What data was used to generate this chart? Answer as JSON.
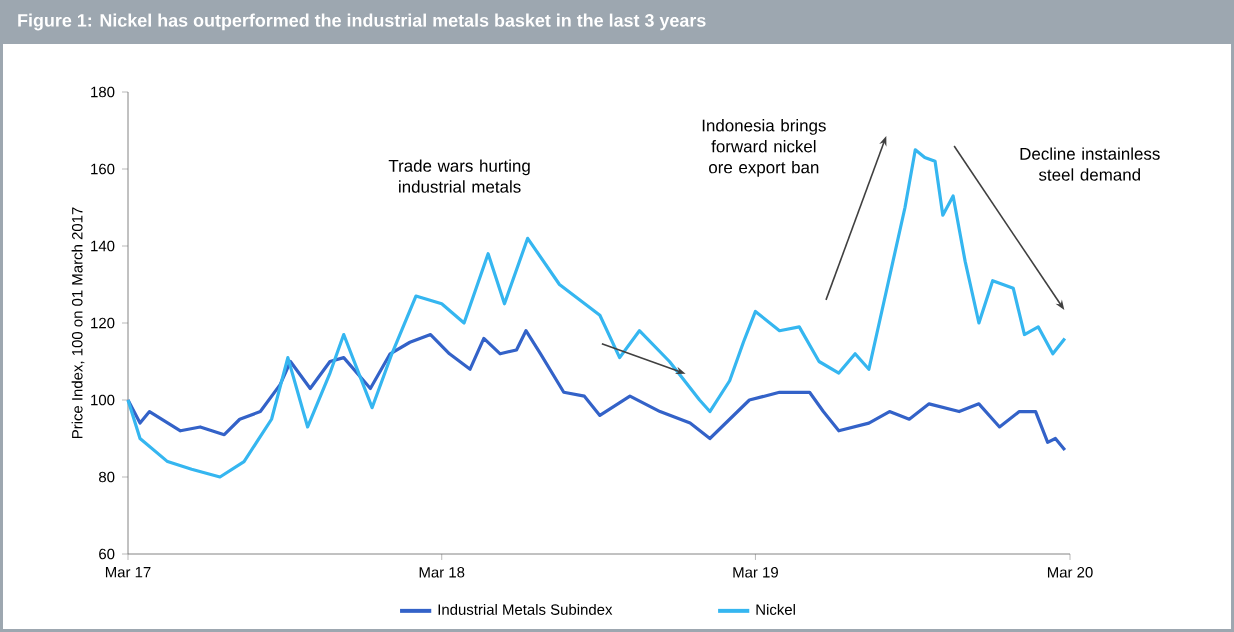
{
  "chart_data": {
    "type": "line",
    "title": "Figure 1: Nickel has outperformed the industrial metals basket in the last 3 years",
    "ylabel": "Price Index, 100 on 01 March 2017",
    "xlim": [
      "2017-03-01",
      "2020-03-01"
    ],
    "xticks": [
      {
        "value": "2017-03-01",
        "label": "Mar 17"
      },
      {
        "value": "2018-03-01",
        "label": "Mar 18"
      },
      {
        "value": "2019-03-01",
        "label": "Mar 19"
      },
      {
        "value": "2020-03-01",
        "label": "Mar 20"
      }
    ],
    "ylim": [
      60,
      180
    ],
    "yticks": [
      60,
      80,
      100,
      120,
      140,
      160,
      180
    ],
    "grid": false,
    "legend": "bottom",
    "marker": "none",
    "line_style": "solid",
    "annotations": [
      "Trade wars hurting industrial metals",
      "Indonesia brings forward nickel ore export ban",
      "Decline instainless steel demand"
    ],
    "series": [
      {
        "name": "Industrial Metals Subindex",
        "color": "#3362c8",
        "x": [
          "2017-03-01",
          "2017-03-15",
          "2017-03-26",
          "2017-05-01",
          "2017-05-24",
          "2017-06-21",
          "2017-07-09",
          "2017-08-02",
          "2017-08-25",
          "2017-09-06",
          "2017-09-29",
          "2017-10-22",
          "2017-11-07",
          "2017-12-08",
          "2017-12-31",
          "2018-01-23",
          "2018-02-16",
          "2018-03-10",
          "2018-04-03",
          "2018-04-19",
          "2018-05-08",
          "2018-05-27",
          "2018-06-07",
          "2018-06-24",
          "2018-07-21",
          "2018-08-14",
          "2018-09-01",
          "2018-10-06",
          "2018-11-10",
          "2018-12-15",
          "2019-01-07",
          "2019-01-30",
          "2019-02-22",
          "2019-03-29",
          "2019-05-03",
          "2019-05-19",
          "2019-06-06",
          "2019-07-11",
          "2019-08-04",
          "2019-08-27",
          "2019-09-19",
          "2019-10-24",
          "2019-11-16",
          "2019-12-10",
          "2020-01-02",
          "2020-01-21",
          "2020-02-04",
          "2020-02-13",
          "2020-02-24"
        ],
        "values": [
          100,
          94,
          97,
          92,
          93,
          91,
          95,
          97,
          104,
          110,
          103,
          110,
          111,
          103,
          112,
          115,
          117,
          112,
          108,
          116,
          112,
          113,
          118,
          112,
          102,
          101,
          96,
          101,
          97,
          94,
          90,
          95,
          100,
          102,
          102,
          97,
          92,
          94,
          97,
          95,
          99,
          97,
          99,
          93,
          97,
          97,
          89,
          90,
          87
        ]
      },
      {
        "name": "Nickel",
        "color": "#35b6f0",
        "x": [
          "2017-03-01",
          "2017-03-15",
          "2017-04-16",
          "2017-05-14",
          "2017-06-16",
          "2017-07-14",
          "2017-08-15",
          "2017-09-03",
          "2017-09-26",
          "2017-10-22",
          "2017-11-07",
          "2017-12-10",
          "2018-01-02",
          "2018-01-30",
          "2018-03-01",
          "2018-03-27",
          "2018-04-24",
          "2018-05-13",
          "2018-06-09",
          "2018-07-16",
          "2018-09-01",
          "2018-09-24",
          "2018-10-17",
          "2018-11-21",
          "2018-12-26",
          "2019-01-07",
          "2019-01-30",
          "2019-02-15",
          "2019-03-01",
          "2019-03-29",
          "2019-04-21",
          "2019-05-14",
          "2019-06-06",
          "2019-06-25",
          "2019-07-11",
          "2019-07-23",
          "2019-08-08",
          "2019-08-22",
          "2019-09-03",
          "2019-09-14",
          "2019-09-26",
          "2019-10-05",
          "2019-10-17",
          "2019-10-31",
          "2019-11-16",
          "2019-12-02",
          "2019-12-26",
          "2020-01-08",
          "2020-01-24",
          "2020-02-10",
          "2020-02-24"
        ],
        "values": [
          100,
          90,
          84,
          82,
          80,
          84,
          95,
          111,
          93,
          107,
          117,
          98,
          112,
          127,
          125,
          120,
          138,
          125,
          142,
          130,
          122,
          111,
          118,
          110,
          100,
          97,
          105,
          115,
          123,
          118,
          119,
          110,
          107,
          112,
          108,
          120,
          136,
          150,
          165,
          163,
          162,
          148,
          153,
          136,
          120,
          131,
          129,
          117,
          119,
          112,
          116
        ]
      }
    ]
  }
}
